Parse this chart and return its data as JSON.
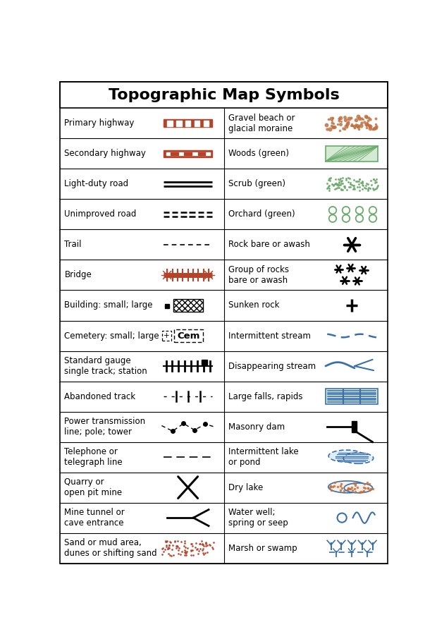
{
  "title": "Topographic Map Symbols",
  "title_fontsize": 16,
  "row_fontsize": 8.5,
  "background_color": "#ffffff",
  "border_color": "#000000",
  "text_color": "#000000",
  "red_color": "#b5432a",
  "blue_color": "#3a6fa8",
  "green_color": "#6aaa6a",
  "fig_w": 6.2,
  "fig_h": 9.06,
  "dpi": 100,
  "rows": [
    {
      "left_label": "Primary highway",
      "right_label": "Gravel beach or\nglacial moraine"
    },
    {
      "left_label": "Secondary highway",
      "right_label": "Woods (green)"
    },
    {
      "left_label": "Light-duty road",
      "right_label": "Scrub (green)"
    },
    {
      "left_label": "Unimproved road",
      "right_label": "Orchard (green)"
    },
    {
      "left_label": "Trail",
      "right_label": "Rock bare or awash"
    },
    {
      "left_label": "Bridge",
      "right_label": "Group of rocks\nbare or awash"
    },
    {
      "left_label": "Building: small; large",
      "right_label": "Sunken rock"
    },
    {
      "left_label": "Cemetery: small; large",
      "right_label": "Intermittent stream"
    },
    {
      "left_label": "Standard gauge\nsingle track; station",
      "right_label": "Disappearing stream"
    },
    {
      "left_label": "Abandoned track",
      "right_label": "Large falls, rapids"
    },
    {
      "left_label": "Power transmission\nline; pole; tower",
      "right_label": "Masonry dam"
    },
    {
      "left_label": "Telephone or\ntelegraph line",
      "right_label": "Intermittent lake\nor pond"
    },
    {
      "left_label": "Quarry or\nopen pit mine",
      "right_label": "Dry lake"
    },
    {
      "left_label": "Mine tunnel or\ncave entrance",
      "right_label": "Water well;\nspring or seep"
    },
    {
      "left_label": "Sand or mud area,\ndunes or shifting sand",
      "right_label": "Marsh or swamp"
    }
  ]
}
